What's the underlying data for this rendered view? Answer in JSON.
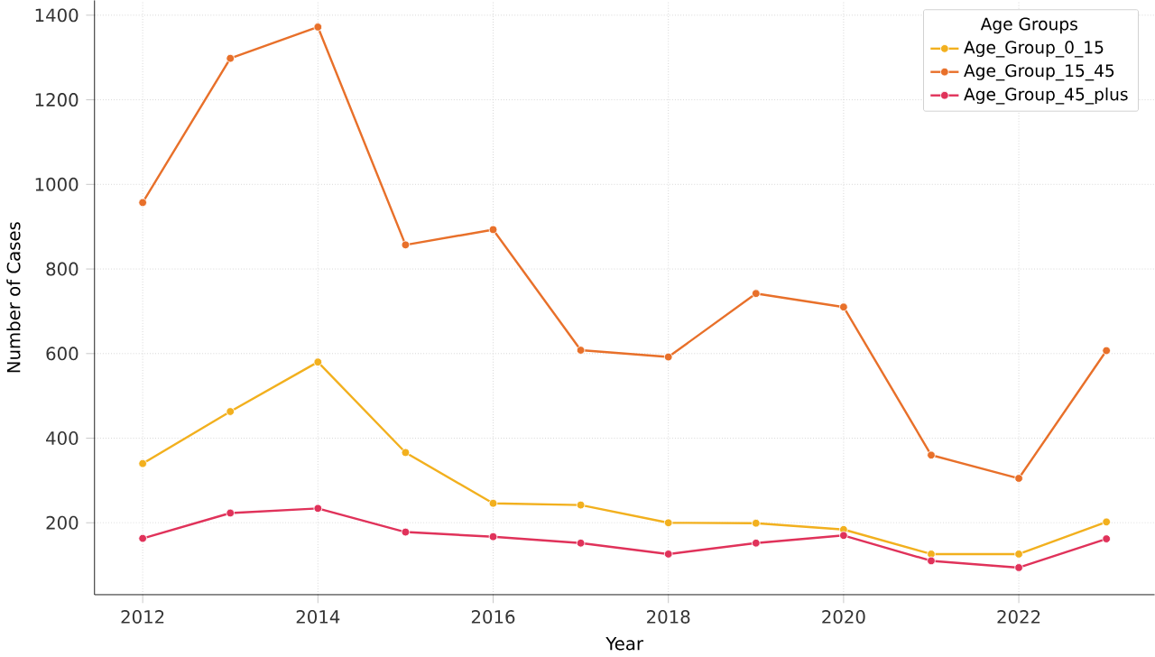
{
  "chart_data": {
    "type": "line",
    "xlabel": "Year",
    "ylabel": "Number of Cases",
    "legend_title": "Age Groups",
    "x": [
      2012,
      2013,
      2014,
      2015,
      2016,
      2017,
      2018,
      2019,
      2020,
      2021,
      2022,
      2023
    ],
    "series": [
      {
        "name": "Age_Group_0_15",
        "color": "#f2b01e",
        "values": [
          340,
          463,
          580,
          366,
          246,
          242,
          200,
          199,
          184,
          126,
          126,
          202
        ]
      },
      {
        "name": "Age_Group_15_45",
        "color": "#e8702a",
        "values": [
          957,
          1298,
          1372,
          857,
          893,
          608,
          592,
          742,
          710,
          360,
          305,
          607
        ]
      },
      {
        "name": "Age_Group_45_plus",
        "color": "#e0325a",
        "values": [
          163,
          223,
          234,
          178,
          167,
          152,
          126,
          152,
          170,
          110,
          94,
          162
        ]
      }
    ],
    "xlim": [
      2011.45,
      2023.55
    ],
    "ylim": [
      30,
      1435
    ],
    "xticks": [
      2012,
      2014,
      2016,
      2018,
      2020,
      2022
    ],
    "yticks": [
      200,
      400,
      600,
      800,
      1000,
      1200,
      1400
    ],
    "grid": true,
    "legend": "top right",
    "marker": "circle",
    "line_style": "solid"
  }
}
